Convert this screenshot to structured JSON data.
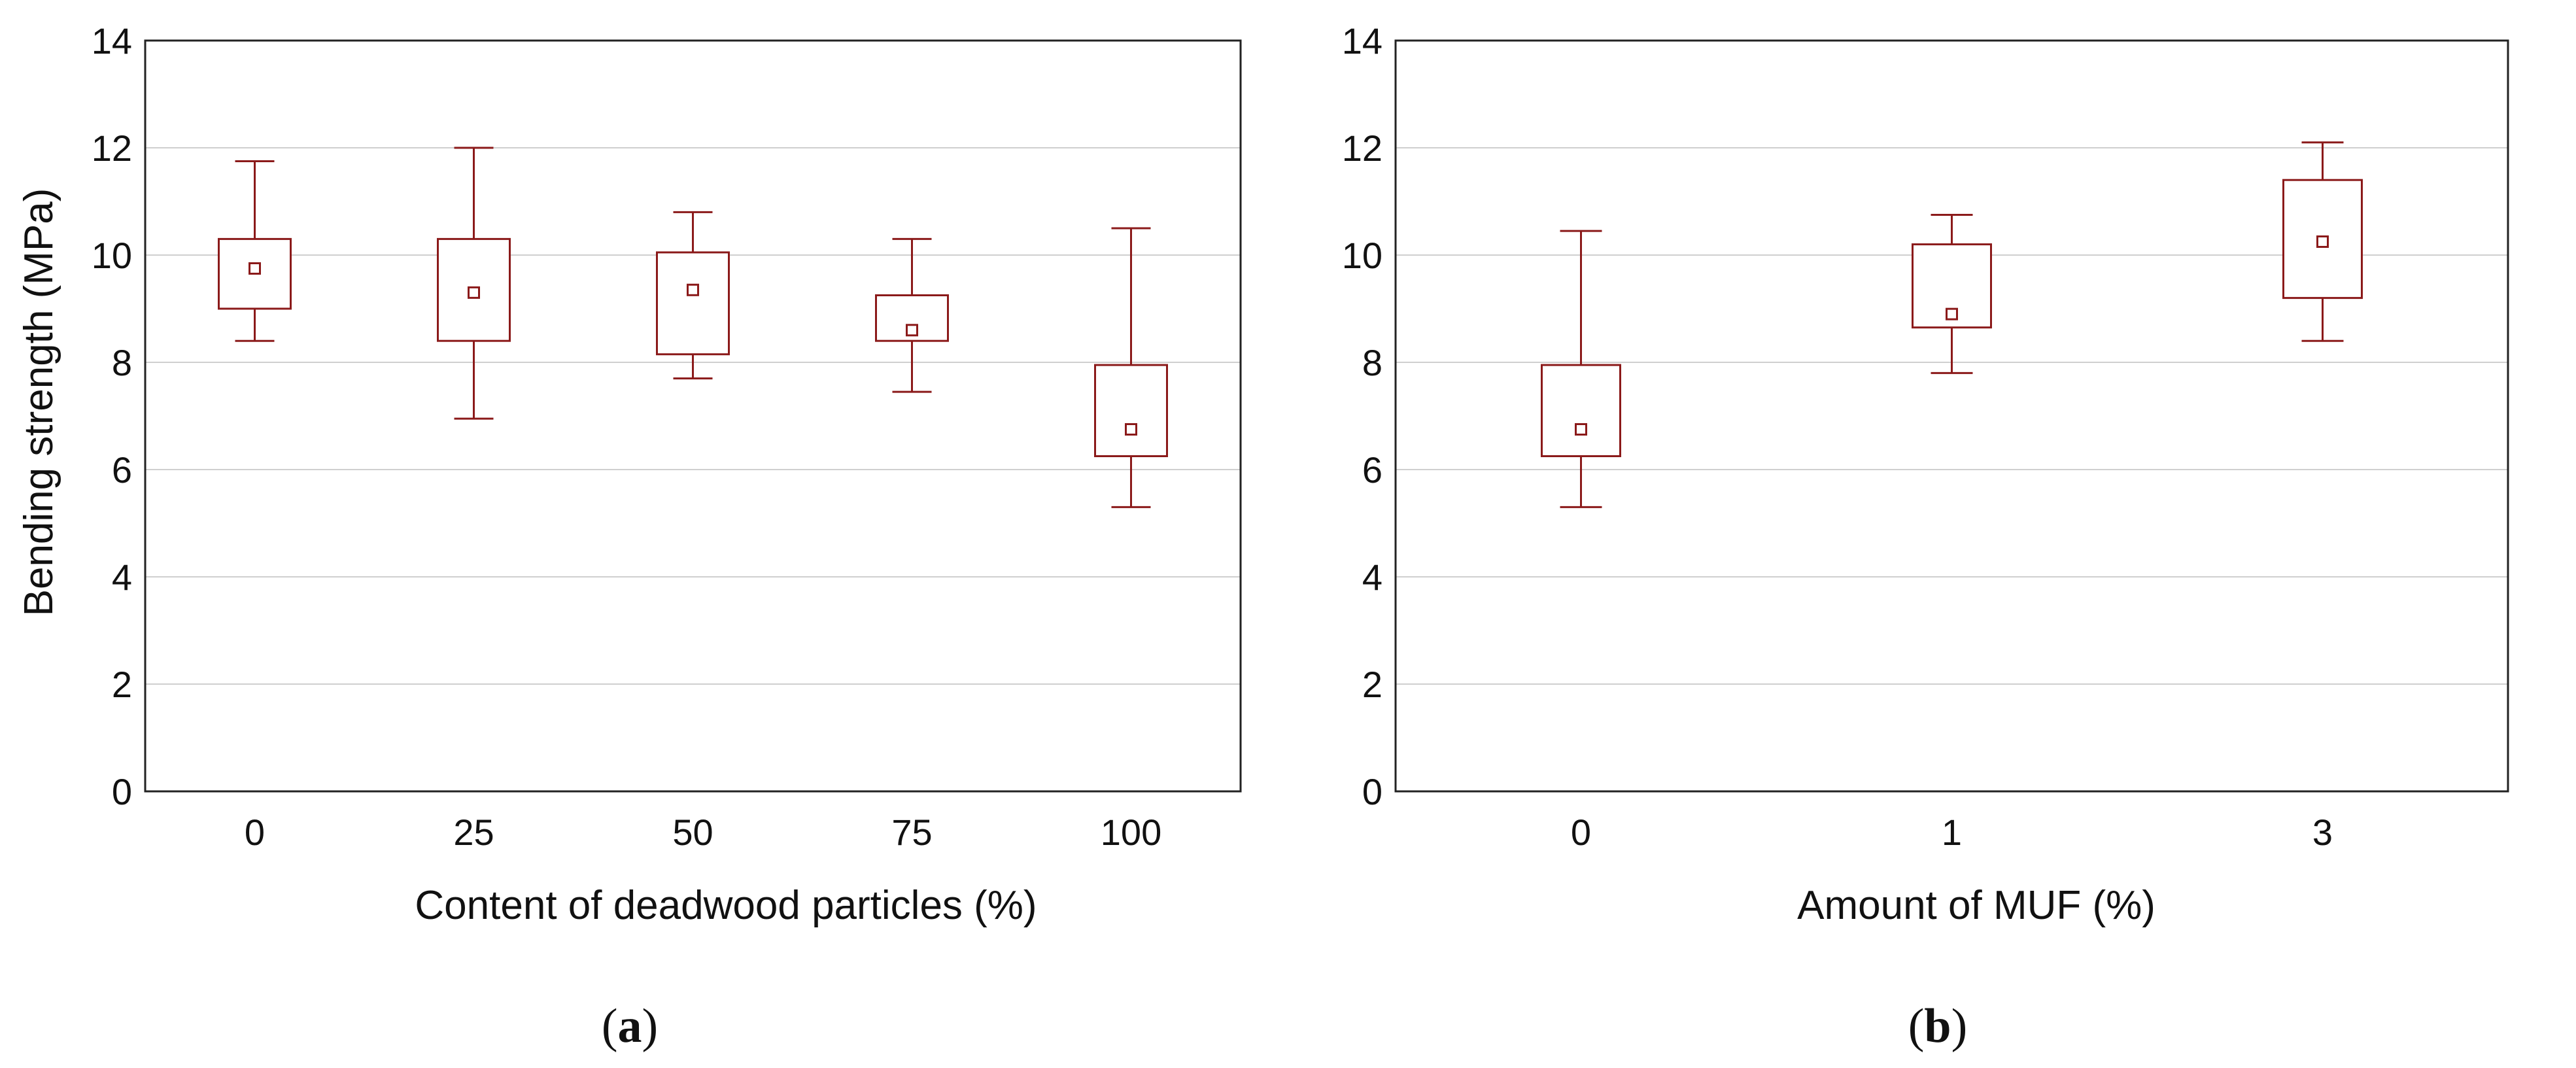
{
  "chart_data": [
    {
      "type": "box",
      "panel_label": "a",
      "ylabel": "Bending strength (MPa)",
      "xlabel": "Content of deadwood particles (%)",
      "ylim": [
        0,
        14
      ],
      "yticks": [
        0,
        2,
        4,
        6,
        8,
        10,
        12,
        14
      ],
      "grid": "horizontal",
      "categories": [
        "0",
        "25",
        "50",
        "75",
        "100"
      ],
      "boxes": [
        {
          "category": "0",
          "whisker_low": 8.4,
          "q1": 9.0,
          "center": 9.75,
          "q3": 10.3,
          "whisker_high": 11.75
        },
        {
          "category": "25",
          "whisker_low": 6.95,
          "q1": 8.4,
          "center": 9.3,
          "q3": 10.3,
          "whisker_high": 12.0
        },
        {
          "category": "50",
          "whisker_low": 7.7,
          "q1": 8.15,
          "center": 9.35,
          "q3": 10.05,
          "whisker_high": 10.8
        },
        {
          "category": "75",
          "whisker_low": 7.45,
          "q1": 8.4,
          "center": 8.6,
          "q3": 9.25,
          "whisker_high": 10.3
        },
        {
          "category": "100",
          "whisker_low": 5.3,
          "q1": 6.25,
          "center": 6.75,
          "q3": 7.95,
          "whisker_high": 10.5
        }
      ],
      "color": "#8b1a1a"
    },
    {
      "type": "box",
      "panel_label": "b",
      "ylabel": "",
      "xlabel": "Amount of MUF (%)",
      "ylim": [
        0,
        14
      ],
      "yticks": [
        0,
        2,
        4,
        6,
        8,
        10,
        12,
        14
      ],
      "grid": "horizontal",
      "categories": [
        "0",
        "1",
        "3"
      ],
      "boxes": [
        {
          "category": "0",
          "whisker_low": 5.3,
          "q1": 6.25,
          "center": 6.75,
          "q3": 7.95,
          "whisker_high": 10.45
        },
        {
          "category": "1",
          "whisker_low": 7.8,
          "q1": 8.65,
          "center": 8.9,
          "q3": 10.2,
          "whisker_high": 10.75
        },
        {
          "category": "3",
          "whisker_low": 8.4,
          "q1": 9.2,
          "center": 10.25,
          "q3": 11.4,
          "whisker_high": 12.1
        }
      ],
      "color": "#8b1a1a"
    }
  ]
}
